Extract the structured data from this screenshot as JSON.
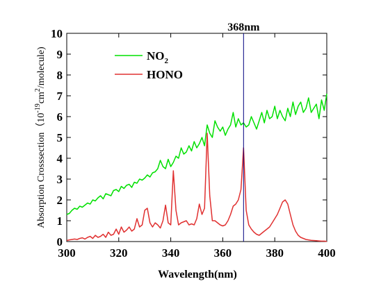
{
  "chart_data": {
    "type": "line",
    "title": "",
    "xlabel": "Wavelength(nm)",
    "ylabel_parts": [
      "Absorption Crosssection（",
      "10",
      "-19",
      "cm",
      "2",
      "/molecule)"
    ],
    "xlim": [
      300,
      400
    ],
    "ylim": [
      0,
      10
    ],
    "x_ticks": [
      300,
      320,
      340,
      360,
      380,
      400
    ],
    "y_ticks": [
      0,
      1,
      2,
      3,
      4,
      5,
      6,
      7,
      8,
      9,
      10
    ],
    "grid": false,
    "legend": {
      "placement": "top-left",
      "entries": [
        {
          "base": "NO",
          "sub": "2"
        },
        {
          "base": "HONO",
          "sub": ""
        }
      ]
    },
    "annotation": {
      "type": "vertical-line",
      "x": 368,
      "label": "368nm",
      "color": "#000080"
    },
    "series": [
      {
        "name": "NO2",
        "color": "#00e000",
        "x": [
          300,
          301,
          302,
          303,
          304,
          305,
          306,
          307,
          308,
          309,
          310,
          311,
          312,
          313,
          314,
          315,
          316,
          317,
          318,
          319,
          320,
          321,
          322,
          323,
          324,
          325,
          326,
          327,
          328,
          329,
          330,
          331,
          332,
          333,
          334,
          335,
          336,
          337,
          338,
          339,
          340,
          341,
          342,
          343,
          344,
          345,
          346,
          347,
          348,
          349,
          350,
          351,
          352,
          353,
          354,
          355,
          356,
          357,
          358,
          359,
          360,
          361,
          362,
          363,
          364,
          365,
          366,
          367,
          368,
          369,
          370,
          371,
          372,
          373,
          374,
          375,
          376,
          377,
          378,
          379,
          380,
          381,
          382,
          383,
          384,
          385,
          386,
          387,
          388,
          389,
          390,
          391,
          392,
          393,
          394,
          395,
          396,
          397,
          398,
          399,
          400
        ],
        "y": [
          1.3,
          1.35,
          1.5,
          1.6,
          1.55,
          1.7,
          1.65,
          1.75,
          1.85,
          1.8,
          2.0,
          1.95,
          2.1,
          2.2,
          2.05,
          2.3,
          2.25,
          2.2,
          2.45,
          2.5,
          2.4,
          2.65,
          2.55,
          2.7,
          2.75,
          2.6,
          2.85,
          2.8,
          3.0,
          2.95,
          3.05,
          3.2,
          3.1,
          3.3,
          3.35,
          3.5,
          3.9,
          3.6,
          3.5,
          3.95,
          3.6,
          3.8,
          4.1,
          4.0,
          4.5,
          4.2,
          4.3,
          4.6,
          4.35,
          4.8,
          4.5,
          4.7,
          5.0,
          4.6,
          5.6,
          5.2,
          5.0,
          5.8,
          5.5,
          5.3,
          5.5,
          5.1,
          5.4,
          5.6,
          6.2,
          5.5,
          5.9,
          5.6,
          5.7,
          5.5,
          5.6,
          6.0,
          5.7,
          5.4,
          5.8,
          6.2,
          5.7,
          6.3,
          5.9,
          6.0,
          6.5,
          5.9,
          6.3,
          6.0,
          5.8,
          6.4,
          6.0,
          6.7,
          6.1,
          6.5,
          6.7,
          6.2,
          6.4,
          6.9,
          6.2,
          6.4,
          6.6,
          5.9,
          6.8,
          6.3,
          7.1
        ]
      },
      {
        "name": "HONO",
        "color": "#e03030",
        "x": [
          300,
          301,
          302,
          303,
          304,
          305,
          306,
          307,
          308,
          309,
          310,
          311,
          312,
          313,
          314,
          315,
          316,
          317,
          318,
          319,
          320,
          321,
          322,
          323,
          324,
          325,
          326,
          327,
          328,
          329,
          330,
          331,
          332,
          333,
          334,
          335,
          336,
          337,
          338,
          339,
          340,
          341,
          342,
          343,
          344,
          345,
          346,
          347,
          348,
          349,
          350,
          351,
          352,
          353,
          354,
          355,
          356,
          357,
          358,
          359,
          360,
          361,
          362,
          363,
          364,
          365,
          366,
          367,
          368,
          369,
          370,
          371,
          372,
          373,
          374,
          375,
          376,
          377,
          378,
          379,
          380,
          381,
          382,
          383,
          384,
          385,
          386,
          387,
          388,
          389,
          390,
          391,
          392,
          393,
          394,
          395,
          396,
          397,
          398,
          399,
          400
        ],
        "y": [
          0.05,
          0.08,
          0.1,
          0.12,
          0.1,
          0.15,
          0.18,
          0.12,
          0.2,
          0.25,
          0.15,
          0.3,
          0.2,
          0.25,
          0.35,
          0.2,
          0.45,
          0.3,
          0.35,
          0.6,
          0.35,
          0.7,
          0.45,
          0.55,
          0.7,
          0.5,
          0.6,
          1.1,
          0.7,
          0.8,
          1.5,
          1.6,
          0.9,
          0.7,
          0.9,
          0.8,
          0.65,
          1.0,
          1.75,
          0.9,
          0.8,
          3.4,
          1.5,
          0.8,
          0.9,
          0.95,
          1.0,
          0.8,
          0.85,
          0.8,
          1.1,
          1.8,
          1.3,
          1.6,
          5.2,
          2.2,
          1.0,
          1.0,
          0.9,
          0.8,
          0.75,
          0.8,
          1.0,
          1.3,
          1.7,
          1.8,
          2.0,
          2.5,
          4.5,
          1.5,
          0.8,
          0.6,
          0.45,
          0.35,
          0.3,
          0.4,
          0.5,
          0.6,
          0.7,
          0.9,
          1.1,
          1.3,
          1.6,
          1.9,
          2.0,
          1.8,
          1.3,
          0.8,
          0.5,
          0.3,
          0.2,
          0.15,
          0.1,
          0.08,
          0.06,
          0.05,
          0.04,
          0.03,
          0.02,
          0.02,
          0.01
        ]
      }
    ]
  }
}
